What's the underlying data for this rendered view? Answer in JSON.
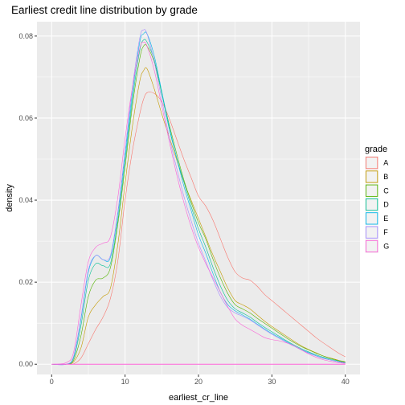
{
  "chart_data": {
    "type": "line",
    "title": "Earliest credit line distribution by grade",
    "xlabel": "earliest_cr_line",
    "ylabel": "density",
    "xlim": [
      -2,
      42
    ],
    "ylim": [
      -0.0025,
      0.0835
    ],
    "x_ticks": [
      0,
      10,
      20,
      30,
      40
    ],
    "x_tick_labels": [
      "0",
      "10",
      "20",
      "30",
      "40"
    ],
    "y_ticks": [
      0.0,
      0.02,
      0.04,
      0.06,
      0.08
    ],
    "y_tick_labels": [
      "0.00",
      "0.02",
      "0.04",
      "0.06",
      "0.08"
    ],
    "grid": true,
    "legend": {
      "title": "grade",
      "position": "right"
    },
    "x": [
      0,
      2,
      3,
      4,
      5,
      6,
      7,
      8,
      9,
      10,
      11,
      12,
      12.5,
      13,
      14,
      15,
      16,
      17,
      18,
      19,
      20,
      21,
      22,
      23,
      24,
      25,
      26,
      27,
      28,
      29,
      30,
      31,
      32,
      33,
      34,
      35,
      36,
      37,
      38,
      39,
      40
    ],
    "series": [
      {
        "name": "A",
        "color": "#F8766D",
        "values": [
          0.0,
          0.0,
          0.0001,
          0.0015,
          0.005,
          0.0085,
          0.0115,
          0.016,
          0.025,
          0.04,
          0.052,
          0.061,
          0.0645,
          0.0662,
          0.066,
          0.064,
          0.06,
          0.055,
          0.05,
          0.0455,
          0.041,
          0.0385,
          0.035,
          0.0305,
          0.026,
          0.0225,
          0.021,
          0.0205,
          0.019,
          0.017,
          0.0155,
          0.014,
          0.0125,
          0.011,
          0.0095,
          0.008,
          0.0065,
          0.0052,
          0.004,
          0.0028,
          0.0018
        ]
      },
      {
        "name": "B",
        "color": "#C49A00",
        "values": [
          0.0,
          0.0,
          0.0006,
          0.004,
          0.0115,
          0.0145,
          0.0165,
          0.0185,
          0.029,
          0.044,
          0.058,
          0.069,
          0.0715,
          0.072,
          0.067,
          0.061,
          0.0555,
          0.05,
          0.0445,
          0.04,
          0.0355,
          0.031,
          0.0265,
          0.0225,
          0.0185,
          0.0155,
          0.0145,
          0.0135,
          0.012,
          0.0105,
          0.0092,
          0.008,
          0.0068,
          0.0056,
          0.0045,
          0.0036,
          0.0028,
          0.002,
          0.0015,
          0.001,
          0.0006
        ]
      },
      {
        "name": "C",
        "color": "#53B400",
        "values": [
          0.0,
          0.0,
          0.001,
          0.007,
          0.0165,
          0.0205,
          0.021,
          0.0235,
          0.034,
          0.048,
          0.063,
          0.0745,
          0.0775,
          0.0775,
          0.0735,
          0.066,
          0.0585,
          0.0515,
          0.045,
          0.0395,
          0.0345,
          0.0305,
          0.0255,
          0.021,
          0.0172,
          0.0145,
          0.0135,
          0.0125,
          0.0112,
          0.01,
          0.0088,
          0.0076,
          0.0064,
          0.0053,
          0.0043,
          0.0035,
          0.0027,
          0.002,
          0.0014,
          0.0009,
          0.0005
        ]
      },
      {
        "name": "D",
        "color": "#00C094",
        "values": [
          0.0,
          0.0,
          0.0015,
          0.0095,
          0.0205,
          0.0245,
          0.024,
          0.0245,
          0.035,
          0.0495,
          0.0645,
          0.0765,
          0.079,
          0.0785,
          0.074,
          0.066,
          0.0575,
          0.0505,
          0.0445,
          0.0385,
          0.033,
          0.0285,
          0.0235,
          0.019,
          0.0155,
          0.0135,
          0.0125,
          0.0115,
          0.0102,
          0.009,
          0.0079,
          0.0068,
          0.0057,
          0.0047,
          0.0038,
          0.003,
          0.0023,
          0.0017,
          0.0012,
          0.0008,
          0.0004
        ]
      },
      {
        "name": "E",
        "color": "#00B6EB",
        "values": [
          0.0,
          0.0,
          0.0018,
          0.011,
          0.0225,
          0.0265,
          0.0255,
          0.026,
          0.0365,
          0.051,
          0.066,
          0.0785,
          0.0805,
          0.0805,
          0.075,
          0.0665,
          0.058,
          0.0505,
          0.0435,
          0.0375,
          0.0315,
          0.027,
          0.022,
          0.0175,
          0.0145,
          0.013,
          0.012,
          0.011,
          0.0098,
          0.0086,
          0.0075,
          0.0065,
          0.0055,
          0.0045,
          0.0036,
          0.0028,
          0.0021,
          0.0015,
          0.001,
          0.0006,
          0.0003
        ]
      },
      {
        "name": "F",
        "color": "#A58AFF",
        "values": [
          0.0,
          0.0,
          0.002,
          0.0115,
          0.023,
          0.0265,
          0.0255,
          0.0265,
          0.037,
          0.052,
          0.0675,
          0.0795,
          0.0815,
          0.0805,
          0.0735,
          0.0645,
          0.0555,
          0.048,
          0.041,
          0.035,
          0.0295,
          0.025,
          0.0205,
          0.0165,
          0.0138,
          0.0125,
          0.0117,
          0.0108,
          0.0096,
          0.0084,
          0.0073,
          0.0063,
          0.0053,
          0.0044,
          0.0035,
          0.0027,
          0.002,
          0.0014,
          0.001,
          0.0006,
          0.0003
        ]
      },
      {
        "name": "G",
        "color": "#FB61D7",
        "values": [
          0.0,
          0.0004,
          0.003,
          0.0145,
          0.025,
          0.0285,
          0.0295,
          0.031,
          0.0405,
          0.055,
          0.0675,
          0.077,
          0.0785,
          0.0775,
          0.0715,
          0.063,
          0.0545,
          0.0465,
          0.0395,
          0.0335,
          0.0285,
          0.0245,
          0.021,
          0.0175,
          0.014,
          0.011,
          0.0095,
          0.0085,
          0.0075,
          0.0065,
          0.006,
          0.0057,
          0.0052,
          0.0045,
          0.0035,
          0.0025,
          0.0017,
          0.0011,
          0.0007,
          0.0004,
          0.0002
        ]
      }
    ],
    "baseline": {
      "y": 0.0,
      "color": "#FB61D7"
    }
  }
}
